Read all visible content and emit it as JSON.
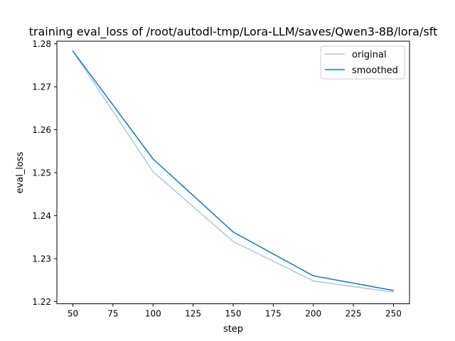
{
  "chart_data": {
    "type": "line",
    "title": "training eval_loss of /root/autodl-tmp/Lora-LLM/saves/Qwen3-8B/lora/sft",
    "xlabel": "step",
    "ylabel": "eval_loss",
    "xlim": [
      40,
      260
    ],
    "ylim": [
      1.2195,
      1.2806
    ],
    "x_ticks": [
      50,
      75,
      100,
      125,
      150,
      175,
      200,
      225,
      250
    ],
    "y_ticks": [
      1.22,
      1.23,
      1.24,
      1.25,
      1.26,
      1.27,
      1.28
    ],
    "x": [
      50,
      100,
      150,
      200,
      250
    ],
    "series": [
      {
        "name": "original",
        "color": "#a6c8e2",
        "values": [
          1.2783,
          1.2502,
          1.234,
          1.2248,
          1.2222
        ]
      },
      {
        "name": "smoothed",
        "color": "#1f77b4",
        "values": [
          1.2783,
          1.2532,
          1.2362,
          1.226,
          1.2226
        ]
      }
    ],
    "legend": {
      "position": "top-right",
      "entries": [
        "original",
        "smoothed"
      ]
    },
    "grid": false
  }
}
